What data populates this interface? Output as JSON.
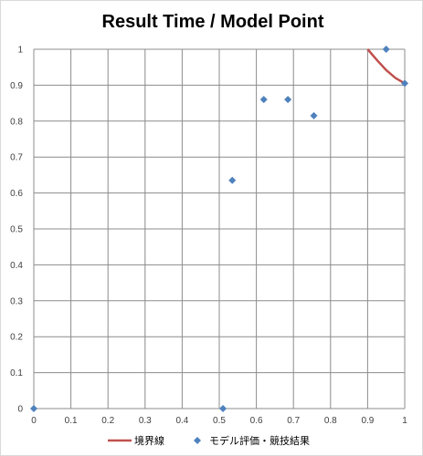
{
  "chart_data": {
    "type": "scatter",
    "title": "Result Time / Model Point",
    "xlabel": "",
    "ylabel": "",
    "xlim": [
      0,
      1
    ],
    "ylim": [
      0,
      1
    ],
    "x_ticks": [
      0,
      0.1,
      0.2,
      0.3,
      0.4,
      0.5,
      0.6,
      0.7,
      0.8,
      0.9,
      1
    ],
    "y_ticks": [
      0,
      0.1,
      0.2,
      0.3,
      0.4,
      0.5,
      0.6,
      0.7,
      0.8,
      0.9,
      1
    ],
    "x_tick_labels": [
      "0",
      "0.1",
      "0.2",
      "0.3",
      "0.4",
      "0.5",
      "0.6",
      "0.7",
      "0.8",
      "0.9",
      "1"
    ],
    "y_tick_labels": [
      "0",
      "0.1",
      "0.2",
      "0.3",
      "0.4",
      "0.5",
      "0.6",
      "0.7",
      "0.8",
      "0.9",
      "1"
    ],
    "grid": true,
    "legend_position": "bottom",
    "series": [
      {
        "name": "境界線",
        "kind": "line",
        "color": "#c0504d",
        "x": [
          0.9,
          0.925,
          0.95,
          0.975,
          1.0
        ],
        "y": [
          1.0,
          0.97,
          0.942,
          0.92,
          0.905
        ]
      },
      {
        "name": "モデル評価・競技結果",
        "kind": "scatter",
        "marker": "diamond",
        "color": "#4f81bd",
        "x": [
          0,
          0.51,
          0.535,
          0.62,
          0.685,
          0.755,
          0.95,
          1.0
        ],
        "y": [
          0,
          0,
          0.635,
          0.86,
          0.86,
          0.815,
          1.0,
          0.905
        ]
      }
    ]
  }
}
